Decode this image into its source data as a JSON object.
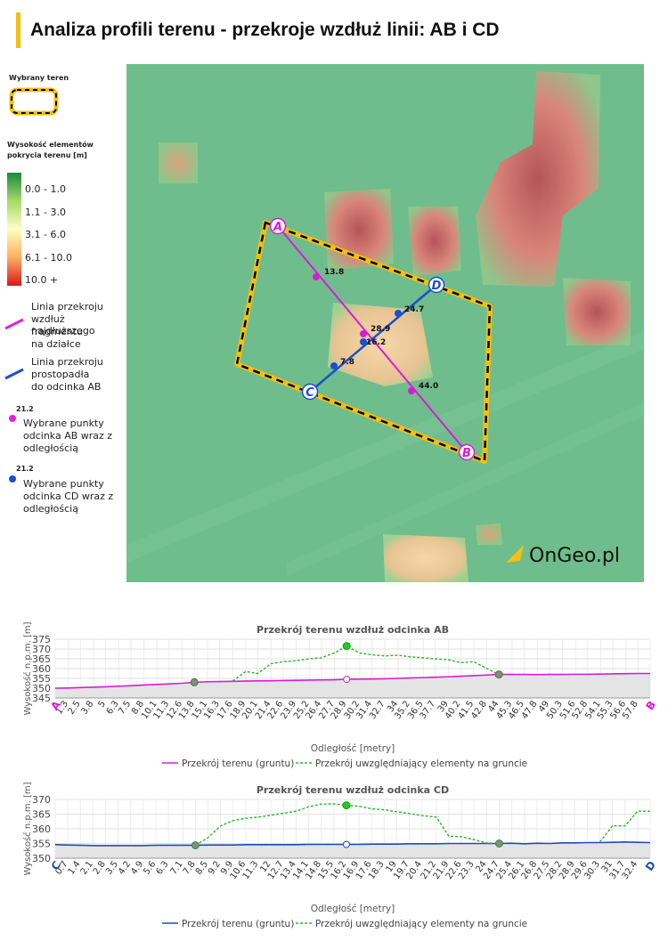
{
  "page_title": "Analiza profili terenu - przekroje wzdłuż linii: AB i CD",
  "legend": {
    "selected_label": "Wybrany teren",
    "height_title_1": "Wysokość elementów",
    "height_title_2": "pokrycia terenu [m]",
    "classes": [
      {
        "label": "0.0 - 1.0",
        "color": "#1a8a3e"
      },
      {
        "label": "1.1 - 3.0",
        "color": "#a6d96a"
      },
      {
        "label": "3.1 - 6.0",
        "color": "#ffffbf"
      },
      {
        "label": "6.1 - 10.0",
        "color": "#fdae61"
      },
      {
        "label": "10.0 +",
        "color": "#d7191c"
      }
    ],
    "ab_line": [
      "Linia przekroju",
      "wzdłuż najdłuższego",
      "fragmentu",
      "na działce"
    ],
    "cd_line": [
      "Linia przekroju",
      "prostopadła",
      "do odcinka AB"
    ],
    "ab_points": [
      "Wybrane punkty",
      "odcinka AB wraz z",
      "odległością"
    ],
    "cd_points": [
      "Wybrane punkty",
      "odcinka CD wraz z",
      "odległością"
    ],
    "sample_value": "21.2",
    "colors": {
      "ab": "#e020e0",
      "cd": "#1a4fd0",
      "selection": "#f2c011"
    }
  },
  "map": {
    "labels": {
      "a": "A",
      "b": "B",
      "c": "C",
      "d": "D"
    },
    "ab_values": [
      "13.8",
      "28.9",
      "44.0"
    ],
    "cd_values": [
      "7.8",
      "16.2",
      "24.7"
    ],
    "watermark": "OnGeo.pl"
  },
  "chart_data": [
    {
      "type": "line",
      "title": "Przekrój terenu wzdłuż odcinka AB",
      "xlabel": "Odległość [metry]",
      "ylabel": "Wysokość n.p.m. [m]",
      "ylim": [
        345,
        375
      ],
      "yticks": [
        345,
        350,
        355,
        360,
        365,
        370,
        375
      ],
      "start_label": "A",
      "end_label": "B",
      "x": [
        0,
        1.3,
        2.5,
        3.8,
        5,
        6.3,
        7.5,
        8.8,
        10.1,
        11.3,
        12.6,
        13.8,
        15.1,
        16.3,
        17.6,
        18.9,
        20.1,
        21.4,
        22.6,
        23.9,
        25.2,
        26.4,
        27.7,
        28.9,
        30.2,
        31.4,
        32.7,
        34,
        35.2,
        36.5,
        37.7,
        39,
        40.2,
        41.5,
        42.8,
        44,
        45.3,
        46.5,
        47.8,
        49,
        50.3,
        51.6,
        52.8,
        54.1,
        55.3,
        56.6,
        57.8,
        59
      ],
      "tick_labels": [
        "1.3",
        "2.5",
        "3.8",
        "5",
        "6.3",
        "7.5",
        "8.8",
        "10.1",
        "11.3",
        "12.6",
        "13.8",
        "15.1",
        "16.3",
        "17.6",
        "18.9",
        "20.1",
        "21.4",
        "22.6",
        "23.9",
        "25.2",
        "26.4",
        "27.7",
        "28.9",
        "30.2",
        "31.4",
        "32.7",
        "34",
        "35.2",
        "36.5",
        "37.7",
        "39",
        "40.2",
        "41.5",
        "42.8",
        "44",
        "45.3",
        "46.5",
        "47.8",
        "49",
        "50.3",
        "51.6",
        "52.8",
        "54.1",
        "55.3",
        "56.6",
        "57.8"
      ],
      "series": [
        {
          "name": "Przekrój terenu (gruntu)",
          "color": "#d81bd8",
          "dash": false,
          "values": [
            350.0,
            350.1,
            350.3,
            350.5,
            350.7,
            351.0,
            351.3,
            351.6,
            351.9,
            352.2,
            352.5,
            353.0,
            353.3,
            353.4,
            353.5,
            353.6,
            353.7,
            353.8,
            353.9,
            354.0,
            354.1,
            354.2,
            354.3,
            354.5,
            354.6,
            354.7,
            354.8,
            355.0,
            355.2,
            355.4,
            355.6,
            355.8,
            356.1,
            356.4,
            356.7,
            357.0,
            357.0,
            357.0,
            356.9,
            357.0,
            357.0,
            357.1,
            357.1,
            357.2,
            357.3,
            357.4,
            357.5,
            357.5
          ]
        },
        {
          "name": "Przekrój uwzględniający elementy na gruncie",
          "color": "#2db52d",
          "dash": true,
          "values": [
            null,
            null,
            null,
            null,
            null,
            null,
            null,
            null,
            null,
            null,
            null,
            null,
            null,
            null,
            353.6,
            358.5,
            357.5,
            362.5,
            363.5,
            364.0,
            365.0,
            365.5,
            368.0,
            371.5,
            368.0,
            367.0,
            366.5,
            366.8,
            366.0,
            365.5,
            365.0,
            364.5,
            363.0,
            363.5,
            360.0,
            357.0,
            null,
            null,
            null,
            null,
            null,
            null,
            null,
            null,
            null,
            null,
            null,
            null
          ]
        }
      ],
      "markers": [
        {
          "x": 13.8,
          "y": 353.0,
          "style": "gray"
        },
        {
          "x": 28.9,
          "y": 371.5,
          "style": "green"
        },
        {
          "x": 28.9,
          "y": 354.5,
          "style": "hollow"
        },
        {
          "x": 44,
          "y": 357.0,
          "style": "gray"
        }
      ]
    },
    {
      "type": "line",
      "title": "Przekrój terenu wzdłuż odcinka CD",
      "xlabel": "Odległość [metry]",
      "ylabel": "Wysokość n.p.m. [m]",
      "ylim": [
        350,
        370
      ],
      "yticks": [
        350,
        355,
        360,
        365,
        370
      ],
      "start_label": "C",
      "end_label": "D",
      "x": [
        0,
        0.7,
        1.4,
        2.1,
        2.8,
        3.5,
        4.2,
        4.9,
        5.6,
        6.3,
        7.1,
        7.8,
        8.5,
        9.2,
        9.9,
        10.6,
        11.3,
        12,
        12.7,
        13.4,
        14.1,
        14.8,
        15.5,
        16.2,
        16.9,
        17.6,
        18.3,
        19,
        19.7,
        20.4,
        21.2,
        21.9,
        22.6,
        23.3,
        24,
        24.7,
        25.4,
        26.1,
        26.8,
        27.5,
        28.2,
        28.9,
        29.6,
        30.3,
        31,
        31.7,
        32.4,
        33.1
      ],
      "tick_labels": [
        "0.7",
        "1.4",
        "2.1",
        "2.8",
        "3.5",
        "4.2",
        "4.9",
        "5.6",
        "6.3",
        "7.1",
        "7.8",
        "8.5",
        "9.2",
        "9.9",
        "10.6",
        "11.3",
        "12",
        "12.7",
        "13.4",
        "14.1",
        "14.8",
        "15.5",
        "16.2",
        "16.9",
        "17.6",
        "18.3",
        "19",
        "19.7",
        "20.4",
        "21.2",
        "21.9",
        "22.6",
        "23.3",
        "24",
        "24.7",
        "25.4",
        "26.1",
        "26.8",
        "27.5",
        "28.2",
        "28.9",
        "29.6",
        "30.3",
        "31",
        "31.7",
        "32.4"
      ],
      "series": [
        {
          "name": "Przekrój terenu (gruntu)",
          "color": "#1a4fb5",
          "dash": false,
          "values": [
            354.6,
            354.5,
            354.4,
            354.3,
            354.3,
            354.3,
            354.3,
            354.3,
            354.4,
            354.4,
            354.4,
            354.4,
            354.5,
            354.5,
            354.5,
            354.6,
            354.6,
            354.6,
            354.6,
            354.6,
            354.7,
            354.7,
            354.7,
            354.7,
            354.7,
            354.8,
            354.8,
            354.8,
            354.9,
            354.9,
            354.9,
            355.0,
            355.0,
            355.0,
            355.0,
            355.0,
            355.1,
            354.9,
            355.1,
            355.0,
            355.2,
            355.2,
            355.3,
            355.3,
            355.4,
            355.5,
            355.4,
            355.3
          ]
        },
        {
          "name": "Przekrój uwzględniający elementy na gruncie",
          "color": "#2db52d",
          "dash": true,
          "values": [
            null,
            null,
            null,
            null,
            null,
            null,
            null,
            null,
            null,
            null,
            null,
            354.4,
            357.0,
            361.0,
            362.8,
            363.6,
            364.0,
            364.6,
            365.3,
            366.0,
            367.5,
            368.4,
            368.5,
            368.0,
            367.7,
            366.8,
            366.5,
            365.8,
            365.2,
            364.5,
            364.0,
            357.5,
            357.3,
            356.3,
            355.2,
            355.0,
            null,
            null,
            null,
            null,
            null,
            null,
            null,
            355.5,
            361.0,
            361.0,
            366.0,
            366.0
          ]
        }
      ],
      "markers": [
        {
          "x": 7.8,
          "y": 354.4,
          "style": "gray"
        },
        {
          "x": 16.2,
          "y": 368.0,
          "style": "green"
        },
        {
          "x": 16.2,
          "y": 354.7,
          "style": "hollow"
        },
        {
          "x": 24.7,
          "y": 355.0,
          "style": "gray"
        }
      ]
    }
  ]
}
